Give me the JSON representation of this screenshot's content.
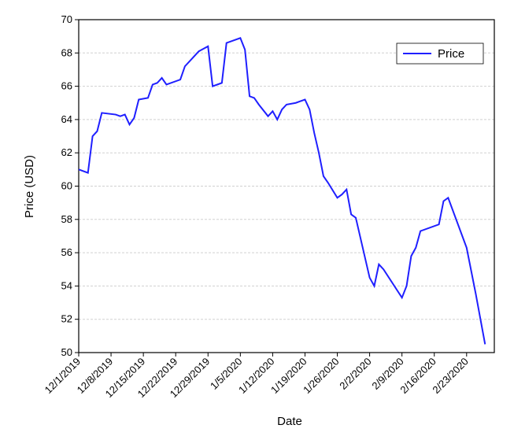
{
  "chart_data": {
    "type": "line",
    "xlabel": "Date",
    "ylabel": "Price (USD)",
    "x": [
      "12/1/2019",
      "12/3/2019",
      "12/4/2019",
      "12/5/2019",
      "12/6/2019",
      "12/9/2019",
      "12/10/2019",
      "12/11/2019",
      "12/12/2019",
      "12/13/2019",
      "12/14/2019",
      "12/16/2019",
      "12/17/2019",
      "12/18/2019",
      "12/19/2019",
      "12/20/2019",
      "12/23/2019",
      "12/24/2019",
      "12/26/2019",
      "12/27/2019",
      "12/29/2019",
      "12/30/2019",
      "1/1/2020",
      "1/2/2020",
      "1/5/2020",
      "1/6/2020",
      "1/7/2020",
      "1/8/2020",
      "1/9/2020",
      "1/11/2020",
      "1/12/2020",
      "1/13/2020",
      "1/14/2020",
      "1/15/2020",
      "1/17/2020",
      "1/19/2020",
      "1/20/2020",
      "1/21/2020",
      "1/22/2020",
      "1/23/2020",
      "1/24/2020",
      "1/26/2020",
      "1/27/2020",
      "1/28/2020",
      "1/29/2020",
      "1/30/2020",
      "2/2/2020",
      "2/3/2020",
      "2/4/2020",
      "2/5/2020",
      "2/9/2020",
      "2/10/2020",
      "2/11/2020",
      "2/12/2020",
      "2/13/2020",
      "2/17/2020",
      "2/18/2020",
      "2/19/2020",
      "2/23/2020",
      "2/25/2020",
      "2/27/2020"
    ],
    "series": [
      {
        "name": "Price",
        "color": "#1f1fff",
        "values": [
          61.0,
          60.8,
          63.0,
          63.3,
          64.4,
          64.3,
          64.2,
          64.3,
          63.7,
          64.1,
          65.2,
          65.3,
          66.1,
          66.2,
          66.5,
          66.1,
          66.4,
          67.2,
          67.8,
          68.1,
          68.4,
          66.0,
          66.2,
          68.6,
          68.9,
          68.2,
          65.4,
          65.3,
          64.9,
          64.2,
          64.5,
          64.0,
          64.6,
          64.9,
          65.0,
          65.2,
          64.6,
          63.2,
          62.0,
          60.6,
          60.2,
          59.3,
          59.5,
          59.8,
          58.3,
          58.1,
          54.5,
          54.0,
          55.3,
          55.0,
          53.3,
          54.0,
          55.8,
          56.3,
          57.3,
          57.7,
          59.1,
          59.3,
          56.3,
          53.5,
          50.5
        ]
      }
    ],
    "xlim": [
      "12/1/2019",
      "2/29/2020"
    ],
    "xticks": [
      "12/1/2019",
      "12/8/2019",
      "12/15/2019",
      "12/22/2019",
      "12/29/2019",
      "1/5/2020",
      "1/12/2020",
      "1/19/2020",
      "1/26/2020",
      "2/2/2020",
      "2/9/2020",
      "2/16/2020",
      "2/23/2020"
    ],
    "ylim": [
      50,
      70
    ],
    "yticks": [
      50,
      52,
      54,
      56,
      58,
      60,
      62,
      64,
      66,
      68,
      70
    ],
    "grid": true,
    "legend": "upper right"
  }
}
